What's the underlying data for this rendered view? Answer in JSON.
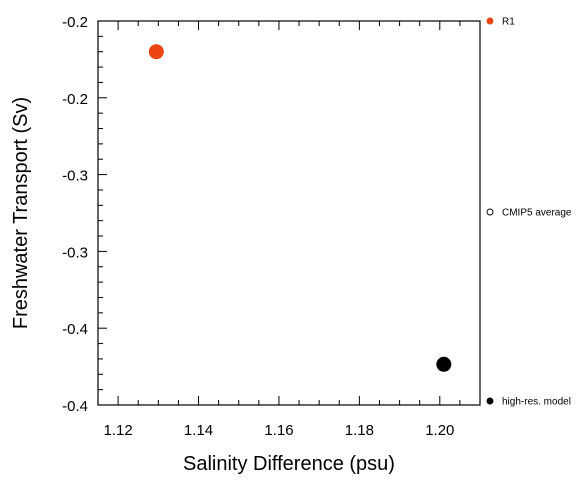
{
  "chart_data": {
    "type": "scatter",
    "title": "",
    "xlabel": "Salinity Difference (psu)",
    "ylabel": "Freshwater Transport (Sv)",
    "xlim": [
      1.115,
      1.21
    ],
    "ylim": [
      -0.4,
      -0.15
    ],
    "x_ticks": [
      1.12,
      1.14,
      1.16,
      1.18,
      1.2
    ],
    "x_tick_labels": [
      "1.12",
      "1.14",
      "1.16",
      "1.18",
      "1.20"
    ],
    "y_ticks": [
      -0.15,
      -0.2,
      -0.25,
      -0.3,
      -0.35,
      -0.4
    ],
    "y_tick_labels": [
      "-0.2",
      "-0.2",
      "-0.3",
      "-0.3",
      "-0.4",
      "-0.4"
    ],
    "grid": false,
    "legend_position": "right, outside plot",
    "series": [
      {
        "name": "R1",
        "x": [
          1.1295
        ],
        "y": [
          -0.17
        ],
        "color": "#ee4411",
        "filled": true
      },
      {
        "name": "CMIP5 average",
        "x": [],
        "y": [],
        "color": "#000000",
        "filled": false
      },
      {
        "name": "high-res. model",
        "x": [
          1.201
        ],
        "y": [
          -0.3735
        ],
        "color": "#000000",
        "filled": true
      }
    ]
  }
}
